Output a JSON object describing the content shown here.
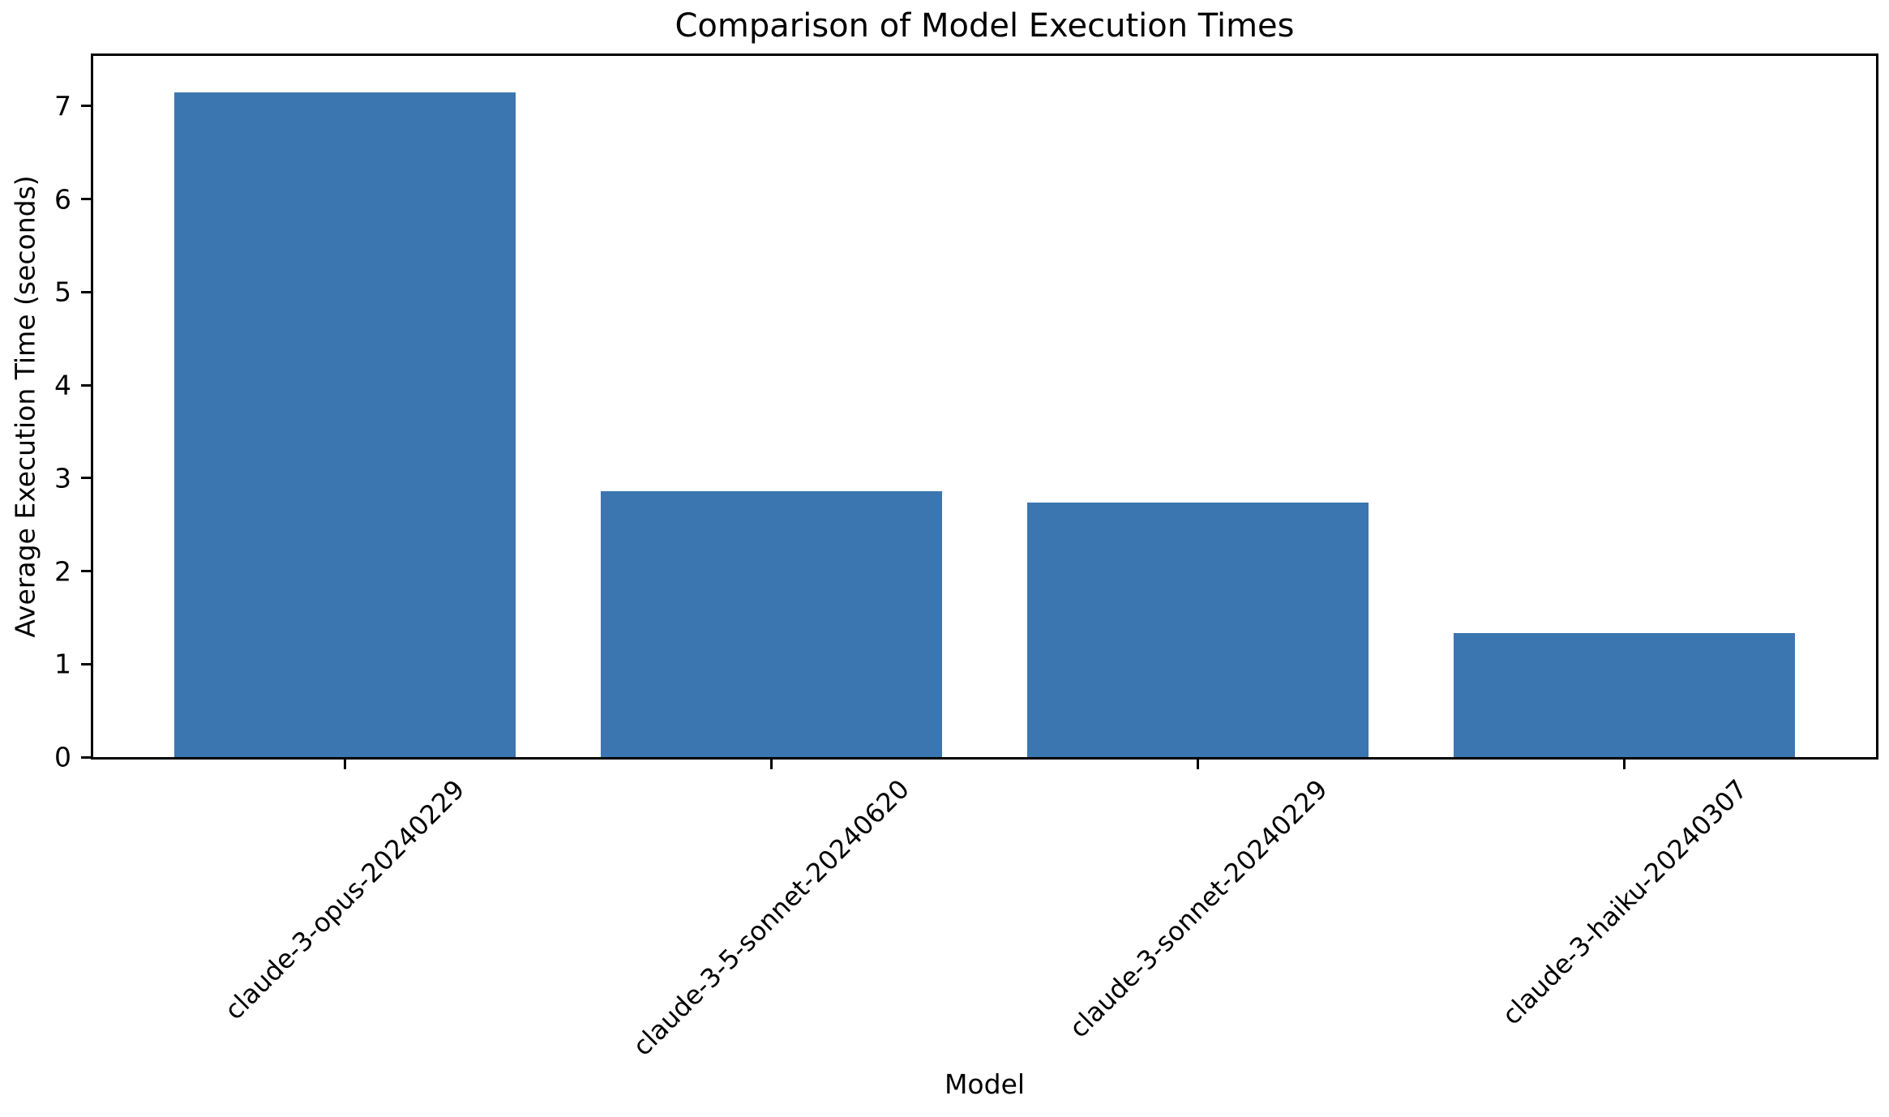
{
  "chart_data": {
    "type": "bar",
    "title": "Comparison of Model Execution Times",
    "xlabel": "Model",
    "ylabel": "Average Execution Time (seconds)",
    "categories": [
      "claude-3-opus-20240229",
      "claude-3-5-sonnet-20240620",
      "claude-3-sonnet-20240229",
      "claude-3-haiku-20240307"
    ],
    "values": [
      7.15,
      2.86,
      2.74,
      1.33
    ],
    "ylim": [
      0,
      7.54
    ],
    "yticks": [
      0,
      1,
      2,
      3,
      4,
      5,
      6,
      7
    ],
    "xlim": [
      -0.59,
      3.59
    ],
    "bar_width": 0.8,
    "xtick_rotation": 45,
    "grid": false,
    "legend": "none",
    "colors": {
      "bar": "#3b76b1",
      "axis": "#000000",
      "text": "#000000",
      "background": "#ffffff"
    }
  }
}
